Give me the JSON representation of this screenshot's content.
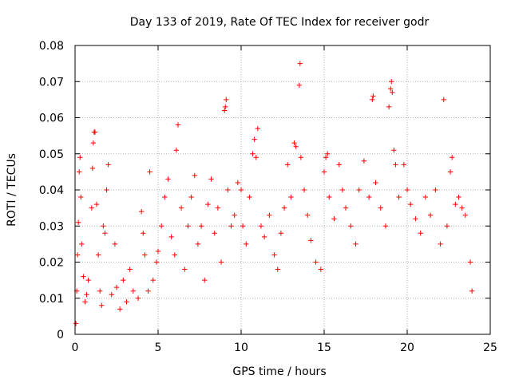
{
  "chart_data": {
    "type": "scatter",
    "title": "Day 133 of 2019, Rate Of TEC Index for receiver godr",
    "xlabel": "GPS time / hours",
    "ylabel": "ROTI / TECUs",
    "xlim": [
      0,
      25
    ],
    "ylim": [
      0,
      0.08
    ],
    "x_ticks": [
      0,
      5,
      10,
      15,
      20,
      25
    ],
    "x_tick_labels": [
      "0",
      "5",
      "10",
      "15",
      "20",
      "25"
    ],
    "y_ticks": [
      0,
      0.01,
      0.02,
      0.03,
      0.04,
      0.05,
      0.06,
      0.07,
      0.08
    ],
    "y_tick_labels": [
      "0",
      "0.01",
      "0.02",
      "0.03",
      "0.04",
      "0.05",
      "0.06",
      "0.07",
      "0.08"
    ],
    "grid": true,
    "marker": "plus",
    "color": "#ff0000",
    "series": [
      {
        "points": [
          [
            0.05,
            0.003
          ],
          [
            0.1,
            0.012
          ],
          [
            0.15,
            0.022
          ],
          [
            0.2,
            0.031
          ],
          [
            0.25,
            0.045
          ],
          [
            0.3,
            0.049
          ],
          [
            0.35,
            0.038
          ],
          [
            0.4,
            0.025
          ],
          [
            0.5,
            0.016
          ],
          [
            0.6,
            0.009
          ],
          [
            0.7,
            0.011
          ],
          [
            0.8,
            0.015
          ],
          [
            1.0,
            0.035
          ],
          [
            1.05,
            0.046
          ],
          [
            1.1,
            0.053
          ],
          [
            1.15,
            0.056
          ],
          [
            1.2,
            0.056
          ],
          [
            1.3,
            0.036
          ],
          [
            1.4,
            0.022
          ],
          [
            1.5,
            0.012
          ],
          [
            1.6,
            0.008
          ],
          [
            1.7,
            0.03
          ],
          [
            1.8,
            0.028
          ],
          [
            1.9,
            0.04
          ],
          [
            2.0,
            0.047
          ],
          [
            2.2,
            0.011
          ],
          [
            2.4,
            0.025
          ],
          [
            2.5,
            0.013
          ],
          [
            2.7,
            0.007
          ],
          [
            2.9,
            0.015
          ],
          [
            3.1,
            0.009
          ],
          [
            3.3,
            0.018
          ],
          [
            3.5,
            0.012
          ],
          [
            3.8,
            0.01
          ],
          [
            4.0,
            0.034
          ],
          [
            4.1,
            0.028
          ],
          [
            4.2,
            0.022
          ],
          [
            4.4,
            0.012
          ],
          [
            4.5,
            0.045
          ],
          [
            4.7,
            0.015
          ],
          [
            4.9,
            0.02
          ],
          [
            5.0,
            0.023
          ],
          [
            5.2,
            0.03
          ],
          [
            5.4,
            0.038
          ],
          [
            5.6,
            0.043
          ],
          [
            5.8,
            0.027
          ],
          [
            6.0,
            0.022
          ],
          [
            6.1,
            0.051
          ],
          [
            6.2,
            0.058
          ],
          [
            6.4,
            0.035
          ],
          [
            6.6,
            0.018
          ],
          [
            6.8,
            0.03
          ],
          [
            7.0,
            0.038
          ],
          [
            7.2,
            0.044
          ],
          [
            7.4,
            0.025
          ],
          [
            7.6,
            0.03
          ],
          [
            7.8,
            0.015
          ],
          [
            8.0,
            0.036
          ],
          [
            8.2,
            0.043
          ],
          [
            8.4,
            0.028
          ],
          [
            8.6,
            0.035
          ],
          [
            8.8,
            0.02
          ],
          [
            9.0,
            0.062
          ],
          [
            9.05,
            0.063
          ],
          [
            9.1,
            0.065
          ],
          [
            9.2,
            0.04
          ],
          [
            9.4,
            0.03
          ],
          [
            9.6,
            0.033
          ],
          [
            9.8,
            0.042
          ],
          [
            10.0,
            0.04
          ],
          [
            10.1,
            0.03
          ],
          [
            10.3,
            0.025
          ],
          [
            10.5,
            0.038
          ],
          [
            10.7,
            0.05
          ],
          [
            10.8,
            0.054
          ],
          [
            10.9,
            0.049
          ],
          [
            11.0,
            0.057
          ],
          [
            11.2,
            0.03
          ],
          [
            11.4,
            0.027
          ],
          [
            11.7,
            0.033
          ],
          [
            12.0,
            0.022
          ],
          [
            12.2,
            0.018
          ],
          [
            12.4,
            0.028
          ],
          [
            12.6,
            0.035
          ],
          [
            12.8,
            0.047
          ],
          [
            13.0,
            0.038
          ],
          [
            13.2,
            0.053
          ],
          [
            13.3,
            0.052
          ],
          [
            13.5,
            0.069
          ],
          [
            13.55,
            0.075
          ],
          [
            13.6,
            0.049
          ],
          [
            13.8,
            0.04
          ],
          [
            14.0,
            0.033
          ],
          [
            14.2,
            0.026
          ],
          [
            14.5,
            0.02
          ],
          [
            14.8,
            0.018
          ],
          [
            15.0,
            0.045
          ],
          [
            15.1,
            0.049
          ],
          [
            15.2,
            0.05
          ],
          [
            15.3,
            0.038
          ],
          [
            15.6,
            0.032
          ],
          [
            15.9,
            0.047
          ],
          [
            16.1,
            0.04
          ],
          [
            16.3,
            0.035
          ],
          [
            16.6,
            0.03
          ],
          [
            16.9,
            0.025
          ],
          [
            17.1,
            0.04
          ],
          [
            17.4,
            0.048
          ],
          [
            17.7,
            0.038
          ],
          [
            17.9,
            0.065
          ],
          [
            17.95,
            0.066
          ],
          [
            18.1,
            0.042
          ],
          [
            18.4,
            0.035
          ],
          [
            18.7,
            0.03
          ],
          [
            18.9,
            0.063
          ],
          [
            19.0,
            0.068
          ],
          [
            19.05,
            0.07
          ],
          [
            19.1,
            0.067
          ],
          [
            19.2,
            0.051
          ],
          [
            19.3,
            0.047
          ],
          [
            19.5,
            0.038
          ],
          [
            19.8,
            0.047
          ],
          [
            20.0,
            0.04
          ],
          [
            20.2,
            0.036
          ],
          [
            20.5,
            0.032
          ],
          [
            20.8,
            0.028
          ],
          [
            21.1,
            0.038
          ],
          [
            21.4,
            0.033
          ],
          [
            21.7,
            0.04
          ],
          [
            22.0,
            0.025
          ],
          [
            22.2,
            0.065
          ],
          [
            22.4,
            0.03
          ],
          [
            22.6,
            0.045
          ],
          [
            22.7,
            0.049
          ],
          [
            22.9,
            0.036
          ],
          [
            23.1,
            0.038
          ],
          [
            23.3,
            0.035
          ],
          [
            23.5,
            0.033
          ],
          [
            23.8,
            0.02
          ],
          [
            23.9,
            0.012
          ]
        ]
      }
    ]
  }
}
